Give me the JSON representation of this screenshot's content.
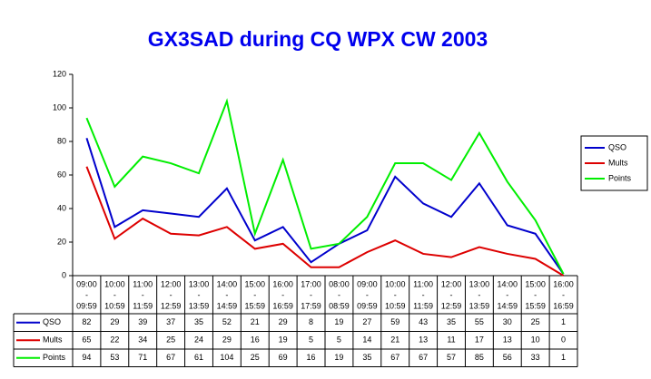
{
  "chart_data": {
    "type": "line",
    "title": "GX3SAD during CQ WPX CW 2003",
    "categories": [
      [
        "09:00",
        "-",
        "09:59"
      ],
      [
        "10:00",
        "-",
        "10:59"
      ],
      [
        "11:00",
        "-",
        "11:59"
      ],
      [
        "12:00",
        "-",
        "12:59"
      ],
      [
        "13:00",
        "-",
        "13:59"
      ],
      [
        "14:00",
        "-",
        "14:59"
      ],
      [
        "15:00",
        "-",
        "15:59"
      ],
      [
        "16:00",
        "-",
        "16:59"
      ],
      [
        "17:00",
        "-",
        "17:59"
      ],
      [
        "08:00",
        "-",
        "08:59"
      ],
      [
        "09:00",
        "-",
        "09:59"
      ],
      [
        "10:00",
        "-",
        "10:59"
      ],
      [
        "11:00",
        "-",
        "11:59"
      ],
      [
        "12:00",
        "-",
        "12:59"
      ],
      [
        "13:00",
        "-",
        "13:59"
      ],
      [
        "14:00",
        "-",
        "14:59"
      ],
      [
        "15:00",
        "-",
        "15:59"
      ],
      [
        "16:00",
        "-",
        "16:59"
      ]
    ],
    "series": [
      {
        "name": "QSO",
        "color": "#0000cc",
        "values": [
          82,
          29,
          39,
          37,
          35,
          52,
          21,
          29,
          8,
          19,
          27,
          59,
          43,
          35,
          55,
          30,
          25,
          1
        ]
      },
      {
        "name": "Mults",
        "color": "#dd0000",
        "values": [
          65,
          22,
          34,
          25,
          24,
          29,
          16,
          19,
          5,
          5,
          14,
          21,
          13,
          11,
          17,
          13,
          10,
          0
        ]
      },
      {
        "name": "Points",
        "color": "#00ee00",
        "values": [
          94,
          53,
          71,
          67,
          61,
          104,
          25,
          69,
          16,
          19,
          35,
          67,
          67,
          57,
          85,
          56,
          33,
          1
        ]
      }
    ],
    "ylim": [
      0,
      120
    ],
    "yticks": [
      0,
      20,
      40,
      60,
      80,
      100,
      120
    ],
    "grid": false,
    "legend": "right"
  }
}
